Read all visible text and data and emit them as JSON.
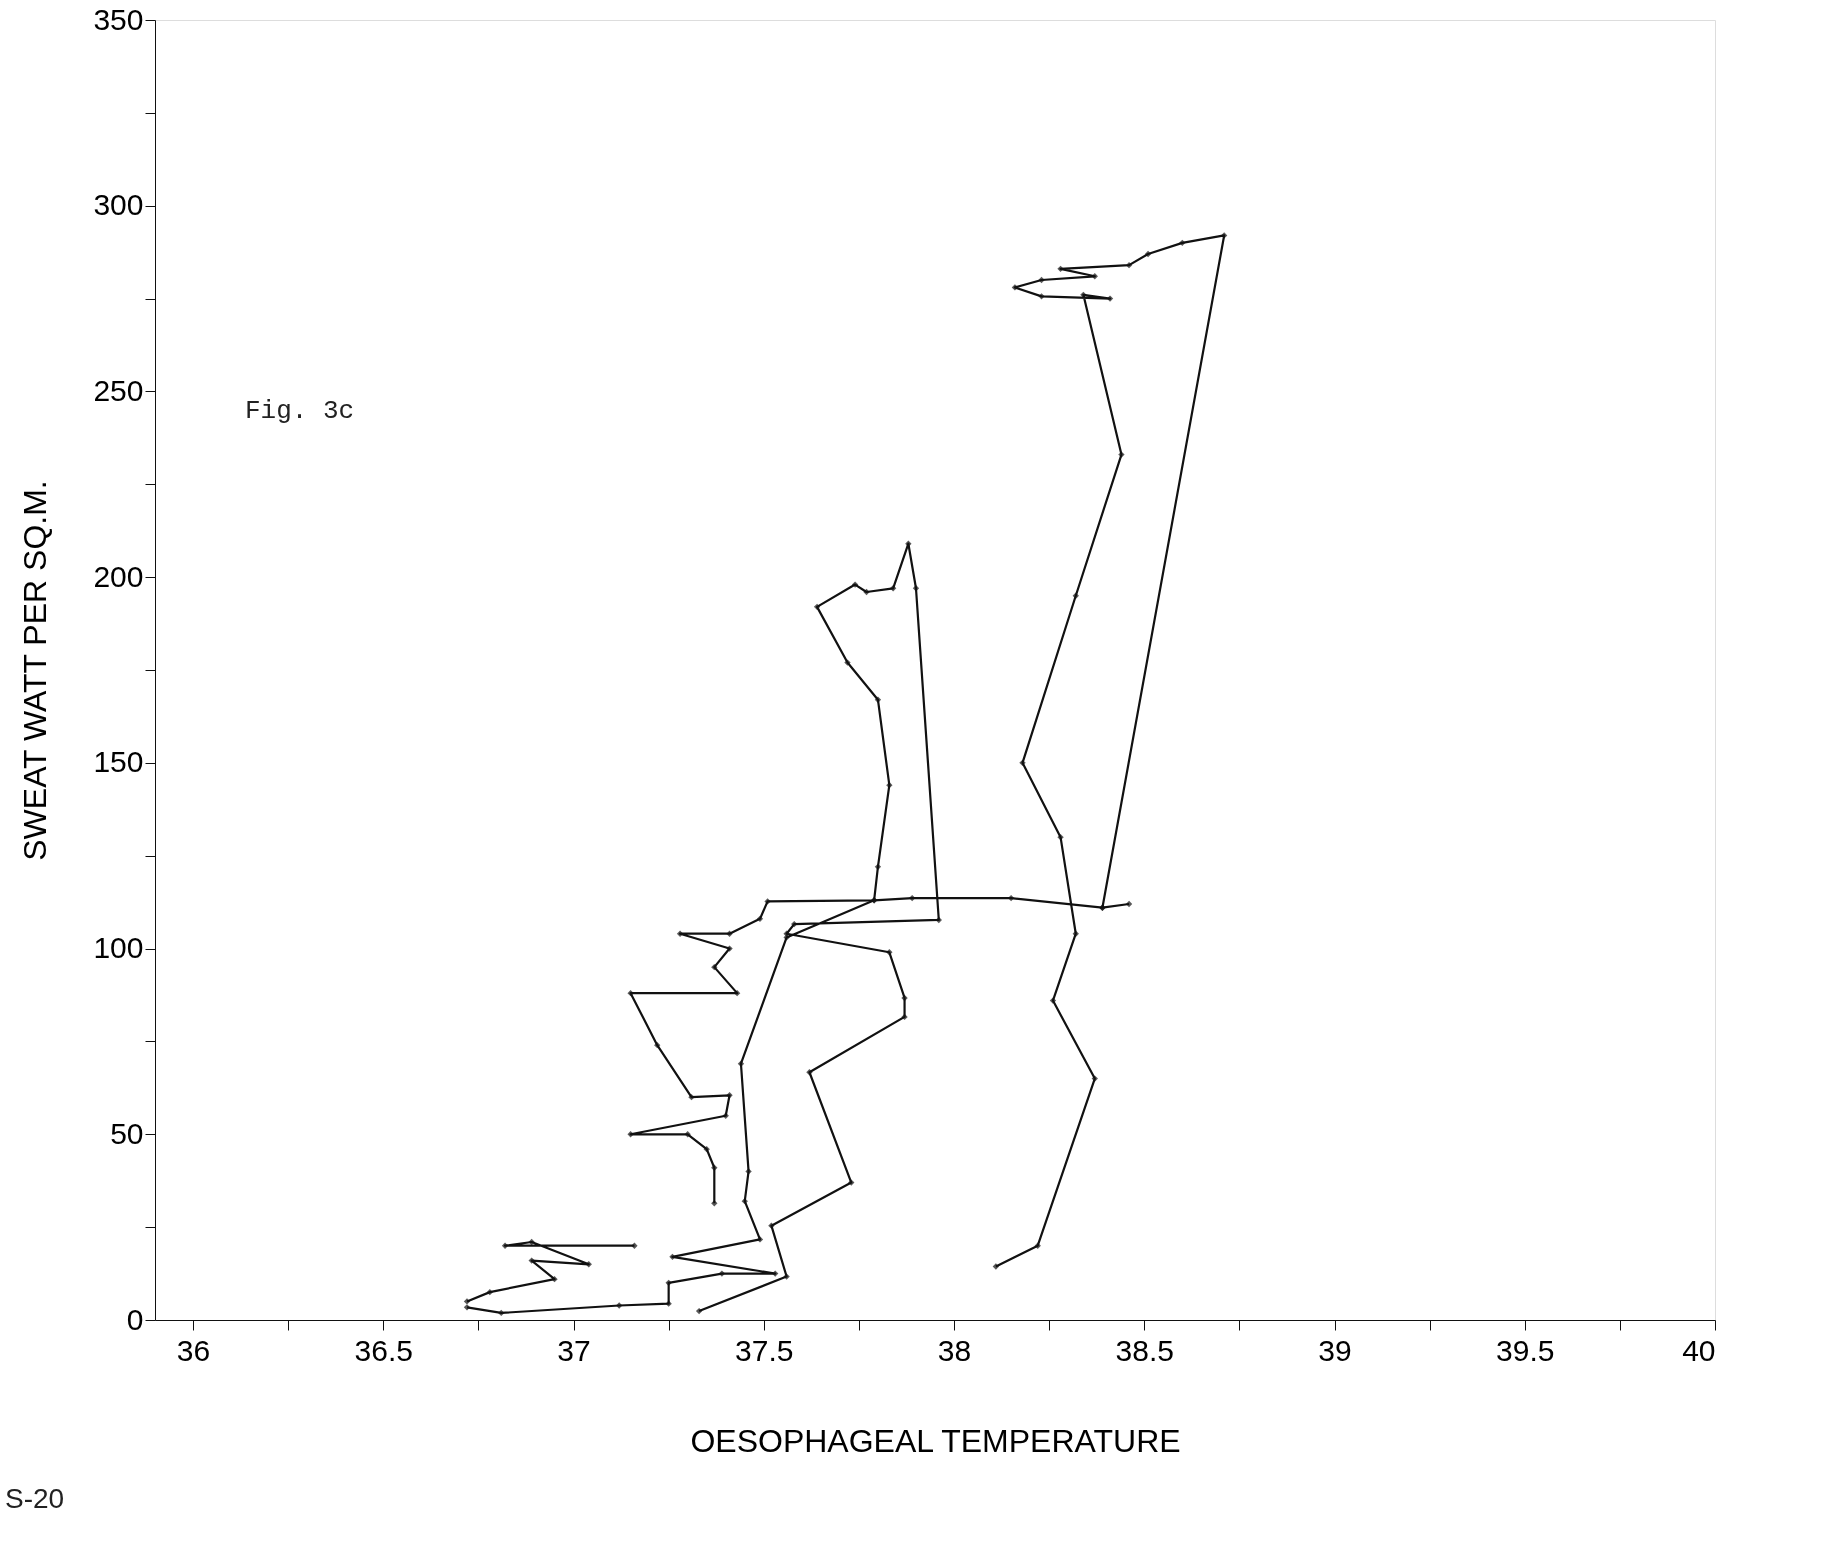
{
  "chart_data": {
    "type": "line",
    "xlabel": "OESOPHAGEAL TEMPERATURE",
    "ylabel": "SWEAT  WATT PER SQ.M.",
    "annotations": [
      "Fig. 3c",
      "S-20"
    ],
    "xlim": [
      35.9,
      40
    ],
    "ylim": [
      0,
      350
    ],
    "xticks": [
      36,
      {
        "value": 36.25,
        "label": null
      },
      36.5,
      {
        "value": 36.75,
        "label": null
      },
      37,
      {
        "value": 37.25,
        "label": null
      },
      37.5,
      {
        "value": 37.75,
        "label": null
      },
      38,
      {
        "value": 38.25,
        "label": null
      },
      38.5,
      {
        "value": 38.75,
        "label": null
      },
      39,
      {
        "value": 39.25,
        "label": null
      },
      39.5,
      {
        "value": 39.75,
        "label": null
      },
      40
    ],
    "yticks": [
      0,
      {
        "value": 25,
        "label": null
      },
      50,
      {
        "value": 75,
        "label": null
      },
      100,
      {
        "value": 125,
        "label": null
      },
      150,
      {
        "value": 175,
        "label": null
      },
      200,
      {
        "value": 225,
        "label": null
      },
      250,
      {
        "value": 275,
        "label": null
      },
      300,
      {
        "value": 325,
        "label": null
      },
      350
    ],
    "marker": "diamond",
    "line_style": "solid",
    "series": [
      {
        "color": "#111111",
        "x": [
          36.72,
          36.78,
          36.95,
          36.89,
          37.04,
          36.89,
          36.82,
          37.16
        ],
        "values": [
          5,
          7.5,
          11,
          16,
          15,
          21,
          20,
          20
        ]
      },
      {
        "color": "#111111",
        "x": [
          36.72,
          36.81,
          37.12,
          37.25,
          37.25,
          37.39,
          37.53,
          37.26,
          37.49,
          37.45,
          37.46,
          37.44,
          37.56,
          37.79,
          37.8,
          37.83,
          37.8,
          37.72,
          37.64,
          37.74,
          37.77,
          37.84,
          37.88,
          37.9,
          37.96,
          37.58,
          37.56,
          37.83,
          37.87,
          37.87,
          37.62,
          37.73,
          37.52,
          37.56,
          37.33
        ],
        "values": [
          3.4,
          1.9,
          3.9,
          4.4,
          10,
          12.5,
          12.5,
          17,
          21.7,
          32,
          40,
          69,
          103,
          113,
          122,
          144,
          167,
          177,
          192,
          198,
          196,
          197,
          209,
          197,
          107.7,
          106.6,
          104,
          99,
          86.7,
          81.6,
          66.7,
          37,
          25.4,
          11.7,
          2.4
        ]
      },
      {
        "color": "#111111",
        "x": [
          37.37,
          37.37,
          37.35,
          37.3,
          37.15,
          37.4,
          37.41,
          37.31,
          37.22,
          37.15,
          37.43,
          37.37,
          37.41,
          37.28,
          37.41,
          37.49,
          37.51,
          37.79,
          37.89,
          38.15,
          38.39,
          38.46
        ],
        "values": [
          31.4,
          41,
          46,
          50,
          50,
          55,
          60.5,
          60,
          74,
          88,
          88,
          95,
          100,
          104,
          104,
          108,
          112.7,
          113,
          113.6,
          113.6,
          111,
          112
        ]
      },
      {
        "color": "#111111",
        "x": [
          38.11,
          38.22,
          38.37,
          38.26,
          38.32,
          38.28,
          38.18,
          38.32,
          38.44,
          38.34,
          38.41,
          38.23,
          38.16,
          38.23,
          38.37,
          38.28,
          38.46,
          38.51,
          38.6,
          38.71,
          38.39
        ],
        "values": [
          14.4,
          20,
          65,
          86,
          104,
          130,
          150,
          195,
          233,
          276,
          275,
          275.6,
          278,
          280,
          281,
          283,
          284,
          287,
          290,
          292,
          111
        ]
      }
    ]
  }
}
